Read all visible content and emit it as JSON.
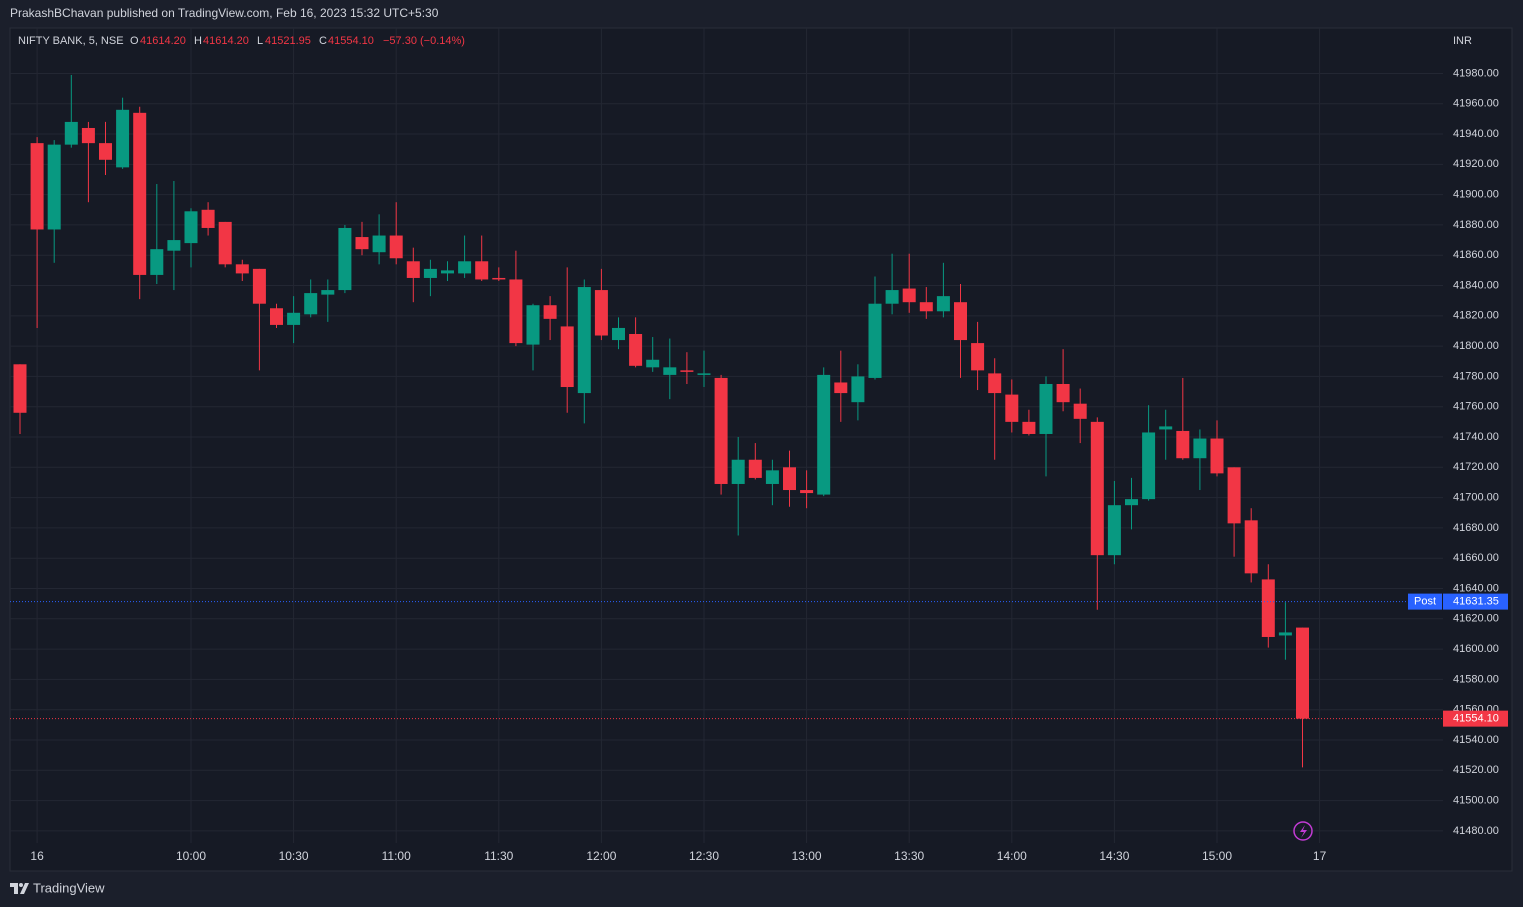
{
  "header": "PrakashBChavan published on TradingView.com, Feb 16, 2023 15:32 UTC+5:30",
  "footer": "TradingView",
  "chart_data": {
    "type": "candlestick",
    "symbol": "NIFTY BANK, 5, NSE",
    "legend": {
      "o": "O",
      "open": "41614.20",
      "h": "H",
      "high": "41614.20",
      "l": "L",
      "low": "41521.95",
      "c": "C",
      "close": "41554.10",
      "change": "−57.30 (−0.14%)"
    },
    "currency": "INR",
    "up_color": "#089981",
    "down_color": "#f23645",
    "grid": true,
    "categories": [
      null,
      "16",
      null,
      null,
      null,
      null,
      null,
      null,
      null,
      null,
      "10:00",
      null,
      null,
      null,
      null,
      null,
      "10:30",
      null,
      null,
      null,
      null,
      null,
      "11:00",
      null,
      null,
      null,
      null,
      null,
      "11:30",
      null,
      null,
      null,
      null,
      null,
      "12:00",
      null,
      null,
      null,
      null,
      null,
      "12:30",
      null,
      null,
      null,
      null,
      null,
      "13:00",
      null,
      null,
      null,
      null,
      null,
      "13:30",
      null,
      null,
      null,
      null,
      null,
      "14:00",
      null,
      null,
      null,
      null,
      null,
      "14:30",
      null,
      null,
      null,
      null,
      null,
      "15:00",
      null,
      null,
      null,
      null,
      null,
      "17"
    ],
    "open": [
      41788,
      41934,
      41877,
      41933,
      41944,
      41934,
      41918,
      41954,
      41847,
      41863,
      41868,
      41890,
      41882,
      41854,
      41851,
      41825,
      41814,
      41821,
      41834,
      41837,
      41872,
      41862,
      41873,
      41856,
      41845,
      41848,
      41848,
      41856,
      41845,
      41844,
      41801,
      41827,
      41813,
      41769,
      41837,
      41804,
      41808,
      41786,
      41781,
      41784,
      41781,
      41779,
      41709,
      41725,
      41709,
      41720,
      41705,
      41702,
      41776,
      41763,
      41779,
      41828,
      41838,
      41829,
      41823,
      41829,
      41802,
      41782,
      41768,
      41750,
      41742,
      41775,
      41762,
      41750,
      41662,
      41695,
      41699,
      41745,
      41744,
      41726,
      41739,
      41720,
      41685,
      41646,
      41609,
      41614.2,
      null
    ],
    "high": [
      41788,
      41938,
      41936,
      41979,
      41948,
      41948,
      41964,
      41958,
      41907,
      41909,
      41891,
      41895,
      41882,
      41857,
      41851,
      41828,
      41833,
      41844,
      41844,
      41880,
      41882,
      41887,
      41895,
      41865,
      41857,
      41856,
      41873,
      41873,
      41852,
      41863,
      41828,
      41833,
      41852,
      41844,
      41851,
      41819,
      41819,
      41806,
      41805,
      41796,
      41797,
      41781,
      41740,
      41736,
      41725,
      41731,
      41718,
      41786,
      41797,
      41788,
      41846,
      41861,
      41861,
      41839,
      41855,
      41841,
      41816,
      41792,
      41778,
      41758,
      41780,
      41798,
      41772,
      41753,
      41711,
      41713,
      41761,
      41758,
      41779,
      41745,
      41751,
      41720,
      41693,
      41656,
      41631,
      41614.2,
      null
    ],
    "low": [
      41742,
      41812,
      41855,
      41931,
      41895,
      41913,
      41917,
      41831,
      41841,
      41837,
      41852,
      41873,
      41852,
      41843,
      41784,
      41812,
      41802,
      41819,
      41816,
      41835,
      41860,
      41854,
      41854,
      41829,
      41833,
      41843,
      41845,
      41843,
      41843,
      41800,
      41784,
      41804,
      41756,
      41749,
      41804,
      41798,
      41786,
      41783,
      41765,
      41775,
      41773,
      41702,
      41675,
      41712,
      41695,
      41694,
      41693,
      41701,
      41750,
      41751,
      41778,
      41821,
      41822,
      41818,
      41819,
      41779,
      41771,
      41725,
      41743,
      41741,
      41714,
      41757,
      41736,
      41626,
      41656,
      41679,
      41698,
      41725,
      41725,
      41705,
      41714,
      41661,
      41644,
      41601,
      41593,
      41521.95,
      null
    ],
    "close": [
      41756,
      41877,
      41933,
      41948,
      41934,
      41923,
      41956,
      41847,
      41864,
      41870,
      41889,
      41878,
      41854,
      41848,
      41828,
      41814,
      41822,
      41835,
      41837,
      41878,
      41864,
      41873,
      41858,
      41845,
      41851,
      41850,
      41856,
      41844,
      41844,
      41802,
      41827,
      41818,
      41773,
      41839,
      41807,
      41812,
      41787,
      41791,
      41786,
      41783,
      41782,
      41709,
      41725,
      41713,
      41718,
      41705,
      41703,
      41781,
      41769,
      41780,
      41828,
      41837,
      41829,
      41823,
      41833,
      41804,
      41784,
      41769,
      41750,
      41742,
      41775,
      41763,
      41752,
      41662,
      41695,
      41699,
      41743,
      41747,
      41726,
      41739,
      41716,
      41683,
      41650,
      41608,
      41611,
      41554.1,
      null
    ],
    "ylim": [
      41472,
      42010
    ],
    "yticks": [
      {
        "value": 41480,
        "label": "41480.00"
      },
      {
        "value": 41500,
        "label": "41500.00"
      },
      {
        "value": 41520,
        "label": "41520.00"
      },
      {
        "value": 41540,
        "label": "41540.00"
      },
      {
        "value": 41560,
        "label": "41560.00"
      },
      {
        "value": 41580,
        "label": "41580.00"
      },
      {
        "value": 41600,
        "label": "41600.00"
      },
      {
        "value": 41620,
        "label": "41620.00"
      },
      {
        "value": 41640,
        "label": "41640.00"
      },
      {
        "value": 41660,
        "label": "41660.00"
      },
      {
        "value": 41680,
        "label": "41680.00"
      },
      {
        "value": 41700,
        "label": "41700.00"
      },
      {
        "value": 41720,
        "label": "41720.00"
      },
      {
        "value": 41740,
        "label": "41740.00"
      },
      {
        "value": 41760,
        "label": "41760.00"
      },
      {
        "value": 41780,
        "label": "41780.00"
      },
      {
        "value": 41800,
        "label": "41800.00"
      },
      {
        "value": 41820,
        "label": "41820.00"
      },
      {
        "value": 41840,
        "label": "41840.00"
      },
      {
        "value": 41860,
        "label": "41860.00"
      },
      {
        "value": 41880,
        "label": "41880.00"
      },
      {
        "value": 41900,
        "label": "41900.00"
      },
      {
        "value": 41920,
        "label": "41920.00"
      },
      {
        "value": 41940,
        "label": "41940.00"
      },
      {
        "value": 41960,
        "label": "41960.00"
      },
      {
        "value": 41980,
        "label": "41980.00"
      }
    ],
    "post_market": {
      "name": "Post",
      "value": 41631.35,
      "label": "41631.35",
      "color": "#2962ff"
    },
    "last_price": {
      "value": 41554.1,
      "label": "41554.10"
    }
  }
}
